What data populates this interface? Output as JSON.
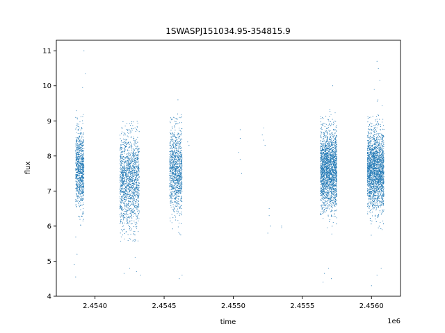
{
  "chart_data": {
    "type": "scatter",
    "title": "1SWASPJ151034.95-354815.9",
    "xlabel": "time",
    "ylabel": "flux",
    "x_offset_label": "1e6",
    "xlim": [
      2.45372,
      2.45621
    ],
    "ylim": [
      4.0,
      11.3
    ],
    "x_ticks": [
      2.454,
      2.4545,
      2.455,
      2.4555,
      2.456
    ],
    "x_tick_labels": [
      "2.4540",
      "2.4545",
      "2.4550",
      "2.4555",
      "2.4560"
    ],
    "y_ticks": [
      4,
      5,
      6,
      7,
      8,
      9,
      10,
      11
    ],
    "y_tick_labels": [
      "4",
      "5",
      "6",
      "7",
      "8",
      "9",
      "10",
      "11"
    ],
    "grid": false,
    "marker_color": "#1f77b4",
    "clusters": [
      {
        "x_range": [
          2.45386,
          2.45392
        ],
        "y_center": 7.6,
        "y_spread": 0.55,
        "y_min": 5.6,
        "y_max": 9.3,
        "count": 900
      },
      {
        "x_range": [
          2.45418,
          2.45432
        ],
        "y_center": 7.3,
        "y_spread": 0.65,
        "y_min": 5.5,
        "y_max": 9.0,
        "count": 1500
      },
      {
        "x_range": [
          2.45454,
          2.45463
        ],
        "y_center": 7.6,
        "y_spread": 0.6,
        "y_min": 5.6,
        "y_max": 9.2,
        "count": 1100
      },
      {
        "x_range": [
          2.45563,
          2.45575
        ],
        "y_center": 7.6,
        "y_spread": 0.55,
        "y_min": 5.6,
        "y_max": 9.4,
        "count": 2200
      },
      {
        "x_range": [
          2.45597,
          2.45609
        ],
        "y_center": 7.6,
        "y_spread": 0.55,
        "y_min": 5.6,
        "y_max": 9.6,
        "count": 2200
      }
    ],
    "sparse_points": [
      [
        2.45392,
        11.0
      ],
      [
        2.45393,
        10.35
      ],
      [
        2.45391,
        9.95
      ],
      [
        2.45387,
        5.2
      ],
      [
        2.45386,
        4.55
      ],
      [
        2.45385,
        4.9
      ],
      [
        2.45425,
        4.8
      ],
      [
        2.45421,
        4.65
      ],
      [
        2.4543,
        4.7
      ],
      [
        2.45433,
        4.6
      ],
      [
        2.45429,
        5.1
      ],
      [
        2.4546,
        9.6
      ],
      [
        2.45463,
        4.6
      ],
      [
        2.45461,
        4.5
      ],
      [
        2.45468,
        8.3
      ],
      [
        2.45467,
        8.4
      ],
      [
        2.45505,
        8.75
      ],
      [
        2.45505,
        8.5
      ],
      [
        2.45504,
        8.1
      ],
      [
        2.45506,
        7.5
      ],
      [
        2.45505,
        7.9
      ],
      [
        2.45522,
        8.8
      ],
      [
        2.45522,
        8.45
      ],
      [
        2.45523,
        8.3
      ],
      [
        2.45521,
        8.6
      ],
      [
        2.45526,
        6.5
      ],
      [
        2.45526,
        6.3
      ],
      [
        2.45527,
        6.0
      ],
      [
        2.45525,
        5.8
      ],
      [
        2.45535,
        5.95
      ],
      [
        2.45535,
        6.0
      ],
      [
        2.45572,
        10.0
      ],
      [
        2.45569,
        4.8
      ],
      [
        2.45566,
        4.65
      ],
      [
        2.45571,
        4.5
      ],
      [
        2.45565,
        4.4
      ],
      [
        2.45604,
        10.7
      ],
      [
        2.45605,
        10.5
      ],
      [
        2.45606,
        10.15
      ],
      [
        2.45602,
        9.9
      ],
      [
        2.456,
        4.3
      ],
      [
        2.45604,
        4.6
      ],
      [
        2.45607,
        4.8
      ]
    ]
  }
}
